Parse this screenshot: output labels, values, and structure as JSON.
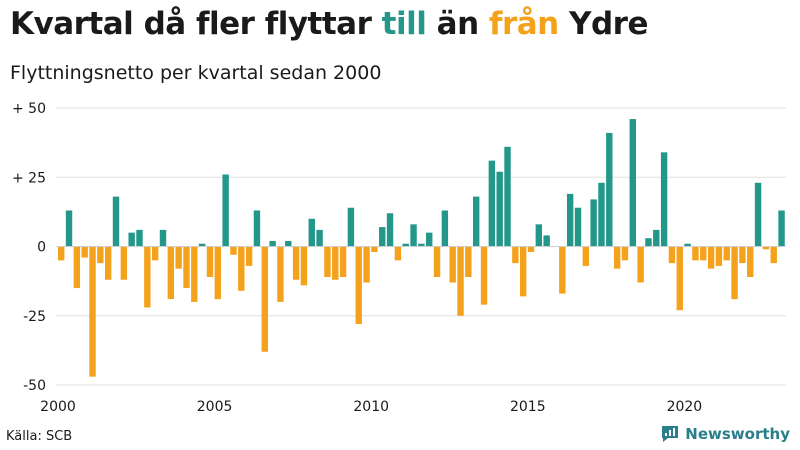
{
  "title": {
    "part1": "Kvartal då fler flyttar ",
    "till": "till",
    "part2": " än ",
    "fran": "från",
    "part3": " Ydre"
  },
  "subtitle": "Flyttningsnetto per kvartal sedan 2000",
  "source": "Källa: SCB",
  "brand": "Newsworthy",
  "colors": {
    "positive": "#22978a",
    "negative": "#f4a21c",
    "text": "#1a1a1a",
    "grid": "#e0e0e0"
  },
  "chart_data": {
    "type": "bar",
    "title": "Kvartal då fler flyttar till än från Ydre",
    "subtitle": "Flyttningsnetto per kvartal sedan 2000",
    "xlabel": "",
    "ylabel": "",
    "ylim": [
      -50,
      50
    ],
    "y_ticks": [
      {
        "value": 50,
        "label": "+ 50"
      },
      {
        "value": 25,
        "label": "+ 25"
      },
      {
        "value": 0,
        "label": "0"
      },
      {
        "value": -25,
        "label": "-25"
      },
      {
        "value": -50,
        "label": "-50"
      }
    ],
    "x_ticks": [
      {
        "year": 2000,
        "label": "2000"
      },
      {
        "year": 2005,
        "label": "2005"
      },
      {
        "year": 2010,
        "label": "2010"
      },
      {
        "year": 2015,
        "label": "2015"
      },
      {
        "year": 2020,
        "label": "2020"
      }
    ],
    "start_year": 2000,
    "values": [
      -5,
      13,
      -15,
      -4,
      -47,
      -6,
      -12,
      18,
      -12,
      5,
      6,
      -22,
      -5,
      6,
      -19,
      -8,
      -15,
      -20,
      1,
      -11,
      -19,
      26,
      -3,
      -16,
      -7,
      13,
      -38,
      2,
      -20,
      2,
      -12,
      -14,
      10,
      6,
      -11,
      -12,
      -11,
      14,
      -28,
      -13,
      -2,
      7,
      12,
      -5,
      1,
      8,
      1,
      5,
      -11,
      13,
      -13,
      -25,
      -11,
      18,
      -21,
      31,
      27,
      36,
      -6,
      -18,
      -2,
      8,
      4,
      0,
      -17,
      19,
      14,
      -7,
      17,
      23,
      41,
      -8,
      -5,
      46,
      -13,
      3,
      6,
      34,
      -6,
      -23,
      1,
      -5,
      -5,
      -8,
      -7,
      -5,
      -19,
      -6,
      -11,
      23,
      -1,
      -6,
      13
    ]
  }
}
